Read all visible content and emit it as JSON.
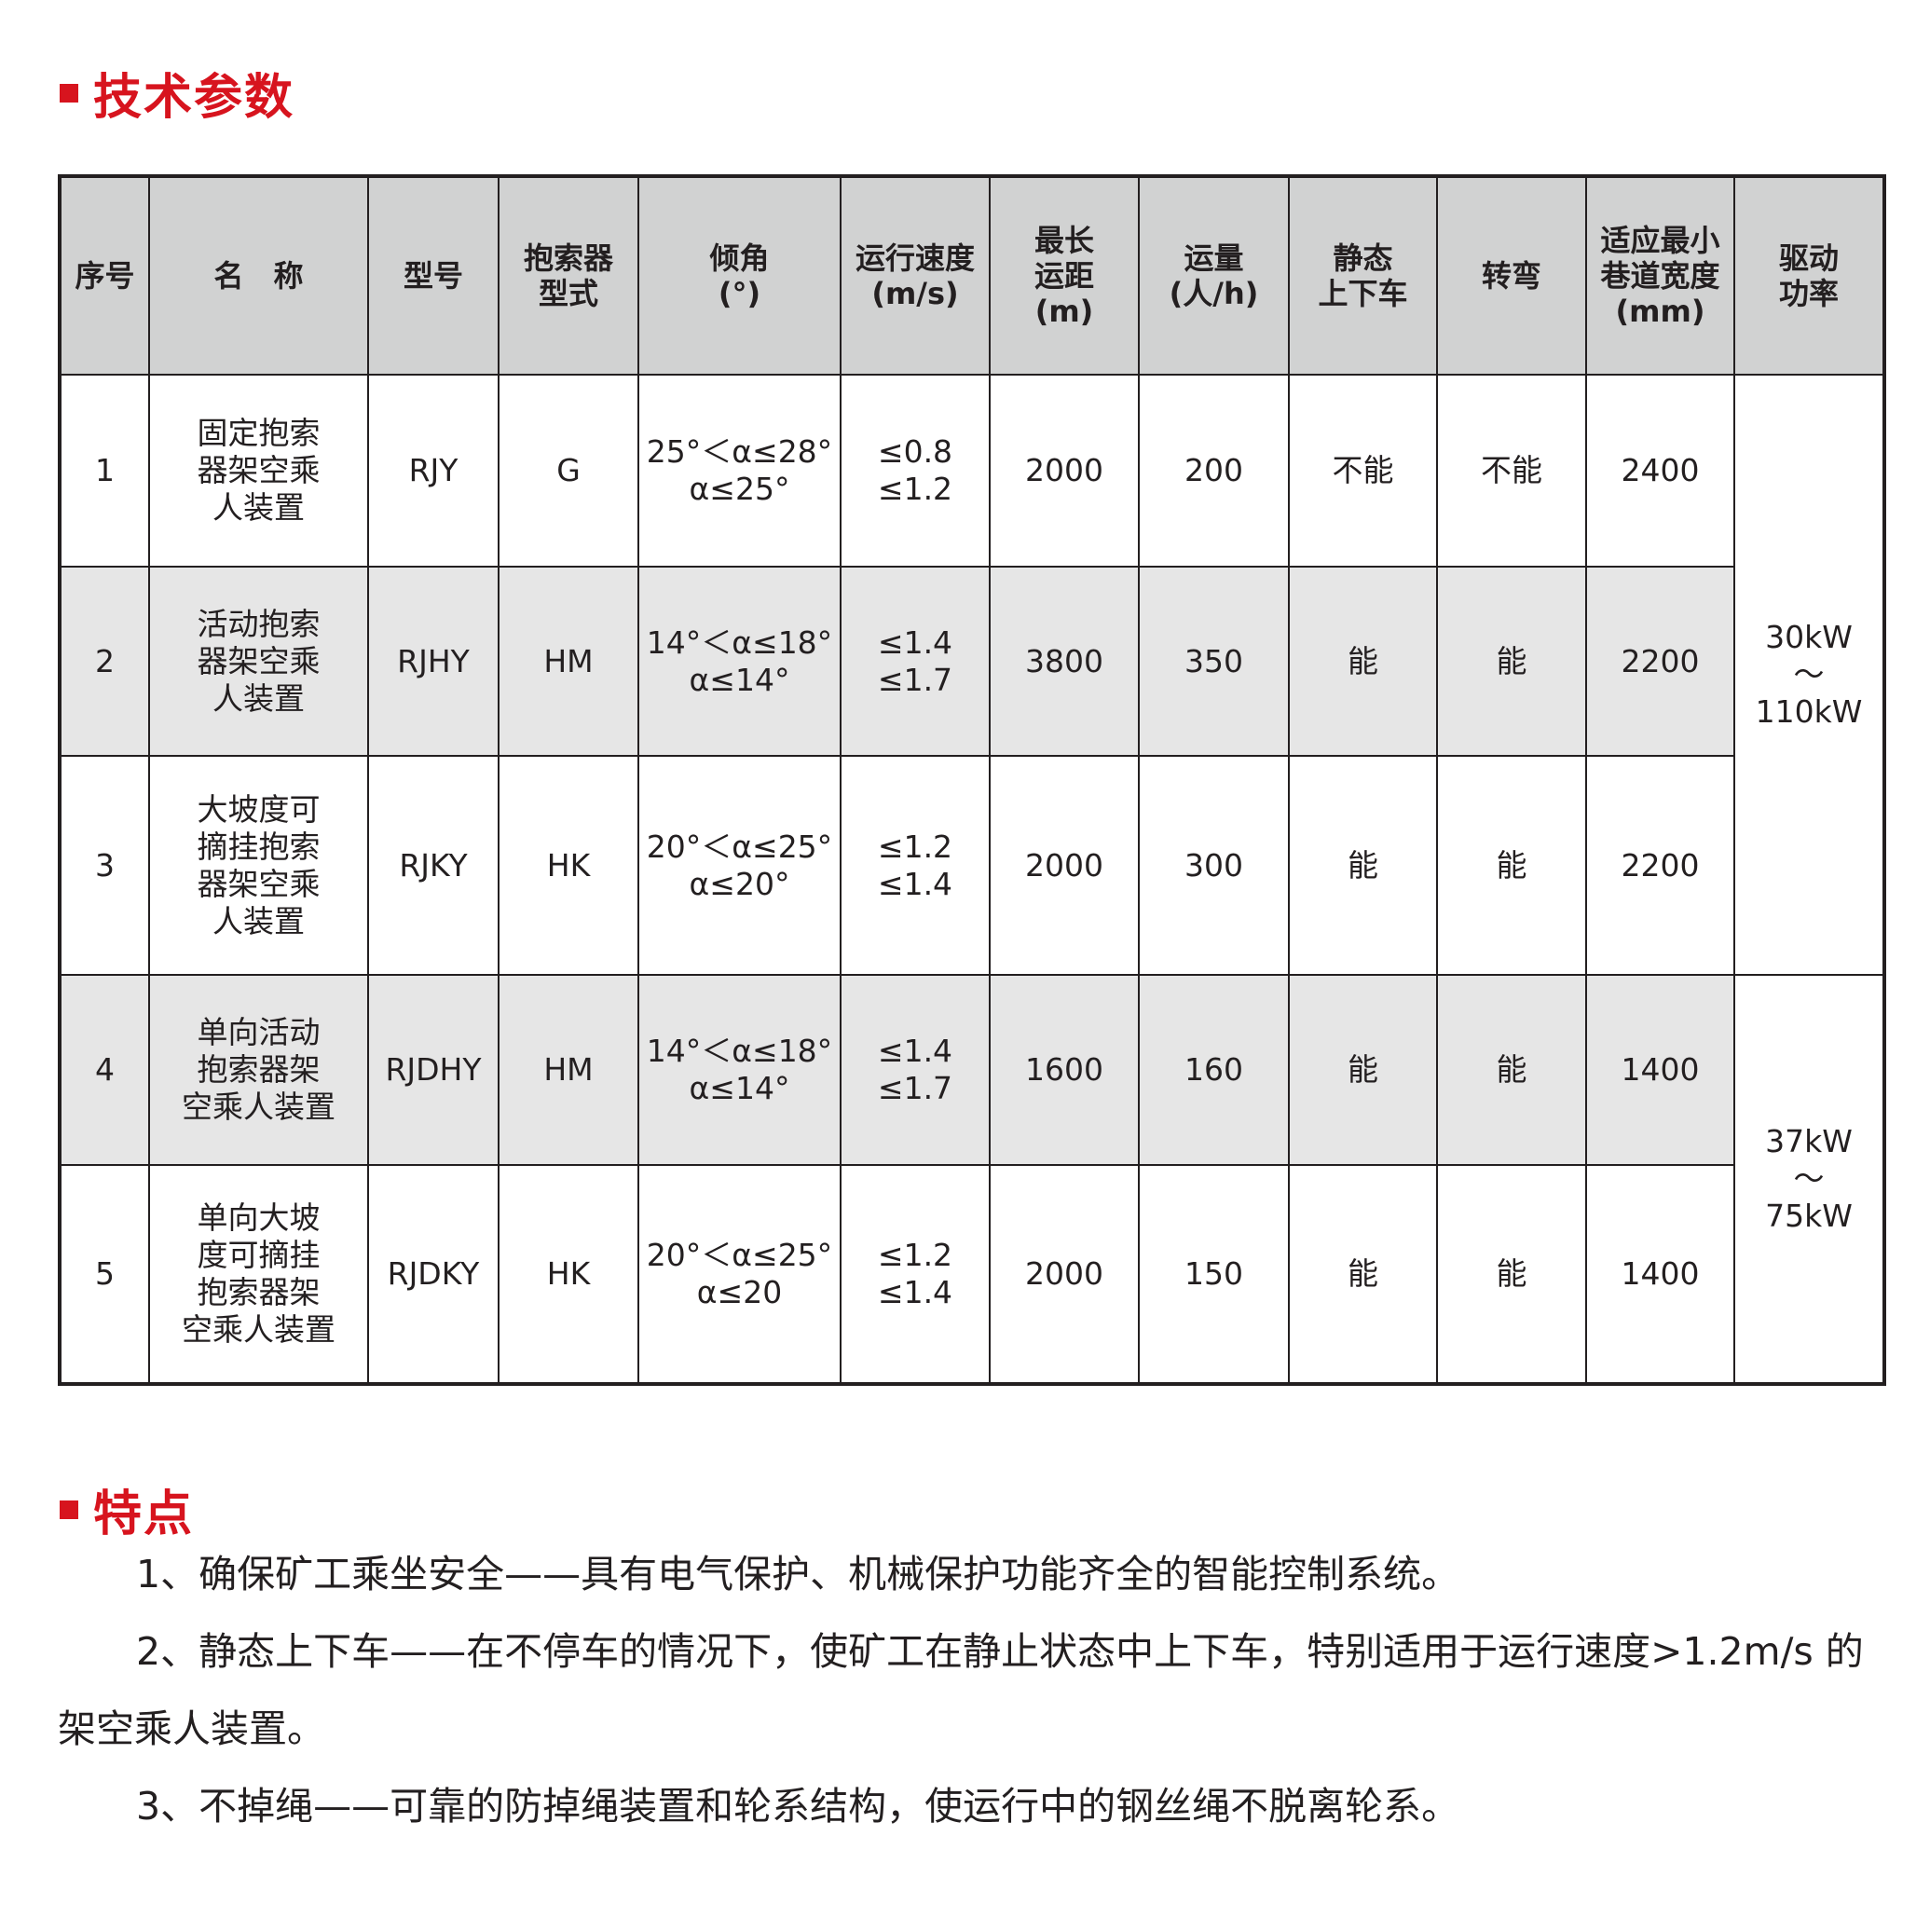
{
  "section1": {
    "title": "技术参数",
    "accent": "#d7141e"
  },
  "table": {
    "headers": [
      "序号",
      "名　称",
      "型号",
      "抱索器\n型式",
      "倾角\n(°)",
      "运行速度\n(m/s)",
      "最长\n运距\n(m)",
      "运量\n(人/h)",
      "静态\n上下车",
      "转弯",
      "适应最小\n巷道宽度\n(mm)",
      "驱动\n功率"
    ],
    "rows": [
      {
        "no": "1",
        "name": "固定抱索\n器架空乘\n人装置",
        "model": "RJY",
        "grip": "G",
        "angle": "25°＜α≤28°\nα≤25°",
        "speed": "≤0.8\n≤1.2",
        "distance": "2000",
        "capacity": "200",
        "static": "不能",
        "turn": "不能",
        "width": "2400"
      },
      {
        "no": "2",
        "name": "活动抱索\n器架空乘\n人装置",
        "model": "RJHY",
        "grip": "HM",
        "angle": "14°＜α≤18°\nα≤14°",
        "speed": "≤1.4\n≤1.7",
        "distance": "3800",
        "capacity": "350",
        "static": "能",
        "turn": "能",
        "width": "2200"
      },
      {
        "no": "3",
        "name": "大坡度可\n摘挂抱索\n器架空乘\n人装置",
        "model": "RJKY",
        "grip": "HK",
        "angle": "20°＜α≤25°\nα≤20°",
        "speed": "≤1.2\n≤1.4",
        "distance": "2000",
        "capacity": "300",
        "static": "能",
        "turn": "能",
        "width": "2200"
      },
      {
        "no": "4",
        "name": "单向活动\n抱索器架\n空乘人装置",
        "model": "RJDHY",
        "grip": "HM",
        "angle": "14°＜α≤18°\nα≤14°",
        "speed": "≤1.4\n≤1.7",
        "distance": "1600",
        "capacity": "160",
        "static": "能",
        "turn": "能",
        "width": "1400"
      },
      {
        "no": "5",
        "name": "单向大坡\n度可摘挂\n抱索器架\n空乘人装置",
        "model": "RJDKY",
        "grip": "HK",
        "angle": "20°＜α≤25°\nα≤20",
        "speed": "≤1.2\n≤1.4",
        "distance": "2000",
        "capacity": "150",
        "static": "能",
        "turn": "能",
        "width": "1400"
      }
    ],
    "power": [
      "30kW\n～\n110kW",
      "37kW\n～\n75kW"
    ]
  },
  "section2": {
    "title": "特点",
    "items": [
      "1、确保矿工乘坐安全——具有电气保护、机械保护功能齐全的智能控制系统。",
      "2、静态上下车——在不停车的情况下，使矿工在静止状态中上下车，特别适用于运行速度>1.2m/s 的架空乘人装置。",
      "3、不掉绳——可靠的防掉绳装置和轮系结构，使运行中的钢丝绳不脱离轮系。"
    ]
  }
}
